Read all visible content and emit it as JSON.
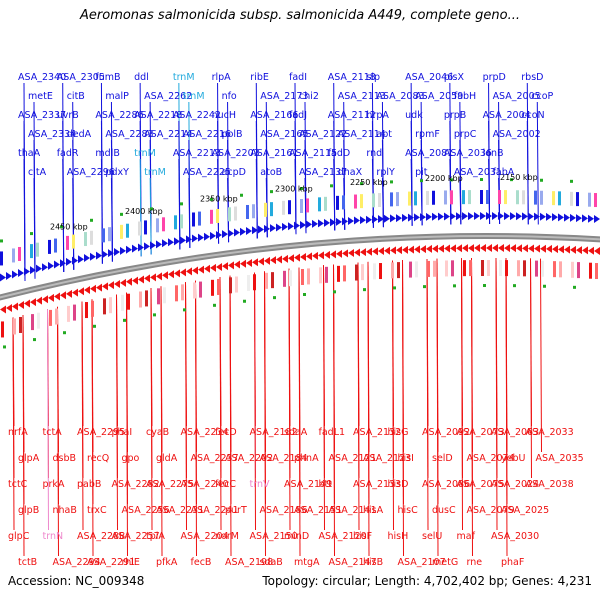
{
  "title": "Aeromonas salmonicida subsp. salmonicida A449, complete geno...",
  "footer": {
    "accession": "Accession: NC_009348",
    "stats": "Topology: circular; Length: 4,702,402 bp; Genes: 4,231"
  },
  "colors": {
    "forward": "#1010dd",
    "reverse": "#ee1111",
    "trna": "#22aadd",
    "trna_reverse": "#ee88cc",
    "backbone": "#888888",
    "tick_mark": "#22aa22"
  },
  "ticks": [
    "2450 kbp",
    "2400 kbp",
    "2350 kbp",
    "2300 kbp",
    "2250 kbp",
    "2200 kbp",
    "2150 kbp"
  ],
  "top_labels": [
    "ASA_2340",
    "metE",
    "ASA_2337",
    "ASA_2334",
    "thaA",
    "citA",
    "ASA_2305",
    "citB",
    "uvrB",
    "dedA",
    "fadR",
    "ASA_2296",
    "fumB",
    "malP",
    "ASA_2286",
    "ASA_2283",
    "mdlB",
    "pdxY",
    "ddl",
    "ASA_2262",
    "ASA_2218",
    "ASA_2214",
    "trnM",
    "trnM",
    "trnM",
    "trnM",
    "ASA_2242",
    "ASA_2216",
    "ASA_2213",
    "ASA_2225",
    "rlpA",
    "nfo",
    "nucH",
    "polB",
    "ASA_2203",
    "acpD",
    "ribE",
    "ASA_2173",
    "ASA_2166",
    "ASA_2165",
    "ASA_2161",
    "atoB",
    "fadI",
    "chi2",
    "fadJ",
    "ASA_2122",
    "ASA_2115",
    "ASA_2137",
    "ASA_2118",
    "ASA_2113",
    "ASA_2112",
    "ASA_2114",
    "fadD",
    "dnaX",
    "slp",
    "ASA_2083",
    "hrpA",
    "apt",
    "rnd",
    "rplY",
    "ASA_2046",
    "ASA_2059",
    "udk",
    "rpmF",
    "ASA_2081",
    "pit",
    "plsX",
    "fabH",
    "prpB",
    "prpC",
    "ASA_2036",
    "ASA_2031",
    "prpD",
    "ASA_2005",
    "ASA_2004",
    "ASA_2002",
    "lonB",
    "fabA",
    "rbsD",
    "ccoP",
    "ccoN"
  ],
  "bottom_labels": [
    "nrfA",
    "glpA",
    "tctC",
    "glpB",
    "glpC",
    "tctB",
    "tctA",
    "dsbB",
    "prkA",
    "nhaB",
    "trnN",
    "ASA_2294",
    "ASA_2295",
    "recQ",
    "pabB",
    "trxC",
    "ASA_2288",
    "ASA_2291",
    "phaI",
    "gpo",
    "ASA_2282",
    "ASA_2256",
    "ASA_2257",
    "rhlE",
    "cyaB",
    "gldA",
    "ASA_2275",
    "ASA_2231",
    "tpiA",
    "pfkA",
    "ASA_2234",
    "ASA_2237",
    "ASA_2240",
    "ASA_2241",
    "ASA_2204",
    "fecB",
    "fecD",
    "ASA_2202",
    "fecC",
    "purT",
    "norM",
    "ASA_2198",
    "ASA_2182",
    "ASA_2184",
    "trnV",
    "ASA_2186",
    "ASA_2150",
    "sdaB",
    "sdaA",
    "phnA",
    "ASA_2149",
    "ASA_2151",
    "minD",
    "mtgA",
    "fadL1",
    "ASA_2121",
    "btt",
    "ASA_2141",
    "ASA_2120",
    "ASA_2147",
    "ASA_2132",
    "ASA_2123",
    "ASA_2133",
    "hisA",
    "hisF",
    "hisB",
    "hisG",
    "hisI",
    "hisD",
    "hisC",
    "hisH",
    "ASA_2107",
    "ASA_2092",
    "selD",
    "ASA_2086",
    "dusC",
    "selU",
    "metG",
    "ASA_2073",
    "ASA_2074",
    "ASA_2075",
    "ASA_2079",
    "maf",
    "rne",
    "ASA_2063",
    "yebU",
    "ASA_2024",
    "ASA_2025",
    "ASA_2030",
    "phaF",
    "ASA_2033",
    "ASA_2035",
    "ASA_2038"
  ]
}
